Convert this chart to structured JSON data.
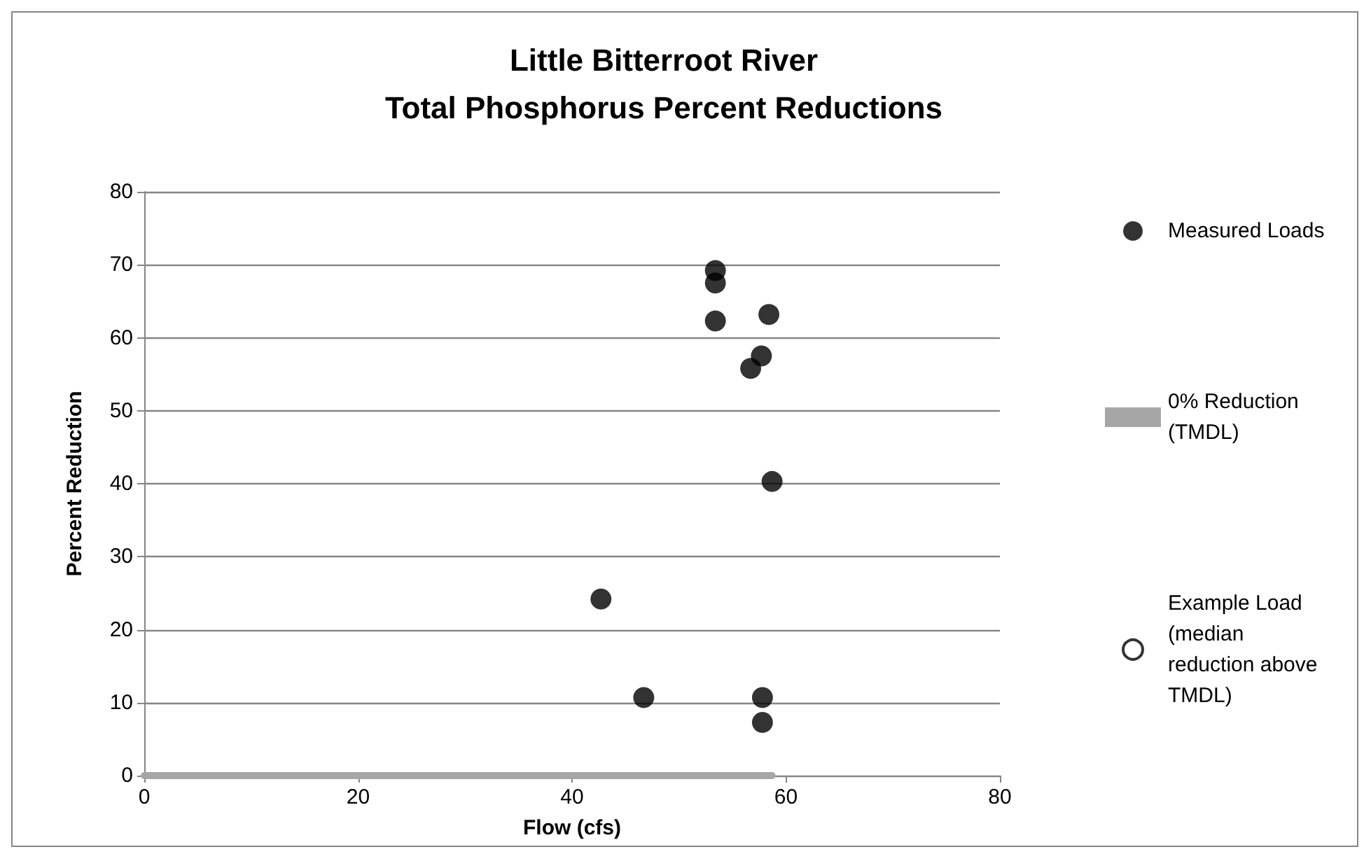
{
  "chart_data": {
    "type": "scatter",
    "title": "Little Bitterroot River\nTotal Phosphorus Percent Reductions",
    "xlabel": "Flow (cfs)",
    "ylabel": "Percent Reduction",
    "xlim": [
      0,
      80
    ],
    "xticks": [
      0,
      20,
      40,
      60,
      80
    ],
    "ylim": [
      0,
      80
    ],
    "yticks": [
      0,
      10,
      20,
      30,
      40,
      50,
      60,
      70,
      80
    ],
    "grid": "y",
    "legend": "right",
    "series": [
      {
        "name": "Measured Loads",
        "marker": "circle",
        "color": "#000000",
        "x": [
          53.4,
          53.4,
          53.4,
          58.4,
          57.7,
          56.7,
          58.7,
          42.7,
          46.7,
          57.8,
          57.8
        ],
        "values": [
          69.2,
          67.5,
          62.3,
          63.2,
          57.5,
          55.8,
          40.3,
          24.2,
          10.7,
          10.7,
          7.3
        ]
      },
      {
        "name": "0% Reduction (TMDL)",
        "type": "line",
        "marker": "none",
        "color": "#a6a6a6",
        "x": [
          0,
          58.7
        ],
        "values": [
          0,
          0
        ]
      },
      {
        "name": "Example Load (median reduction above TMDL)",
        "marker": "circle",
        "color": "#000000"
      }
    ]
  }
}
